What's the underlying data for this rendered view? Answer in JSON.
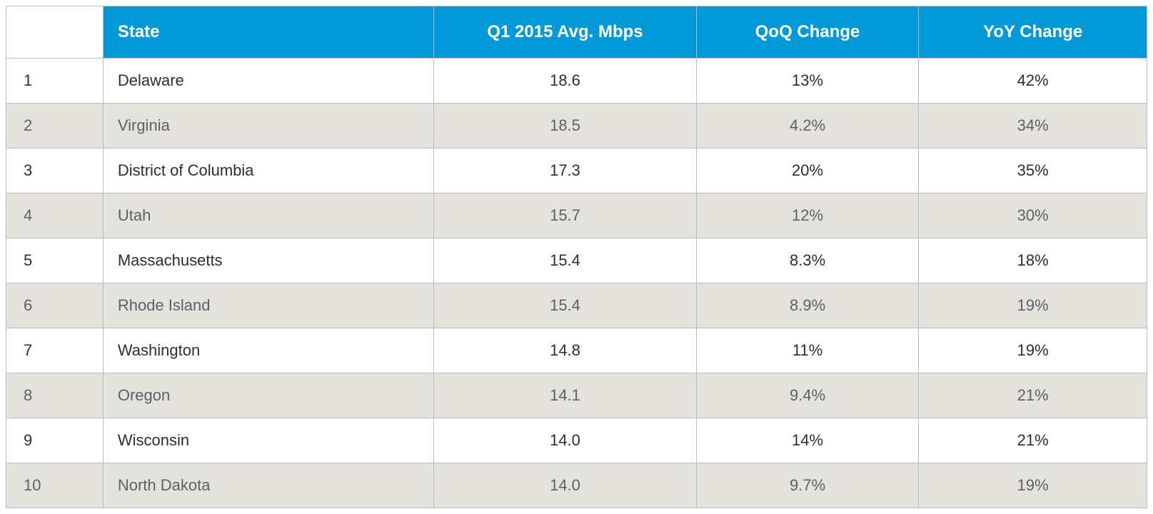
{
  "table": {
    "type": "table",
    "background_color": "#ffffff",
    "border_color": "#b8bdbf",
    "header": {
      "bg_color": "#0099d8",
      "text_color": "#ffffff",
      "font_size_pt": 18,
      "font_weight": 600
    },
    "row_odd": {
      "bg_color": "#ffffff",
      "text_color": "#2b2f31",
      "font_weight": 500
    },
    "row_even": {
      "bg_color": "#e4e2dd",
      "text_color": "#5b6266",
      "font_weight": 400
    },
    "columns": [
      {
        "key": "rank",
        "label": "",
        "align": "left",
        "width_pct": 8.5
      },
      {
        "key": "state",
        "label": "State",
        "align": "left",
        "width_pct": 29
      },
      {
        "key": "mbps",
        "label": "Q1 2015 Avg. Mbps",
        "align": "center",
        "width_pct": 23
      },
      {
        "key": "qoq",
        "label": "QoQ Change",
        "align": "center",
        "width_pct": 19.5
      },
      {
        "key": "yoy",
        "label": "YoY Change",
        "align": "center",
        "width_pct": 20
      }
    ],
    "rows": [
      {
        "rank": "1",
        "state": "Delaware",
        "mbps": "18.6",
        "qoq": "13%",
        "yoy": "42%"
      },
      {
        "rank": "2",
        "state": "Virginia",
        "mbps": "18.5",
        "qoq": "4.2%",
        "yoy": "34%"
      },
      {
        "rank": "3",
        "state": "District of Columbia",
        "mbps": "17.3",
        "qoq": "20%",
        "yoy": "35%"
      },
      {
        "rank": "4",
        "state": "Utah",
        "mbps": "15.7",
        "qoq": "12%",
        "yoy": "30%"
      },
      {
        "rank": "5",
        "state": "Massachusetts",
        "mbps": "15.4",
        "qoq": "8.3%",
        "yoy": "18%"
      },
      {
        "rank": "6",
        "state": "Rhode Island",
        "mbps": "15.4",
        "qoq": "8.9%",
        "yoy": "19%"
      },
      {
        "rank": "7",
        "state": "Washington",
        "mbps": "14.8",
        "qoq": "11%",
        "yoy": "19%"
      },
      {
        "rank": "8",
        "state": "Oregon",
        "mbps": "14.1",
        "qoq": "9.4%",
        "yoy": "21%"
      },
      {
        "rank": "9",
        "state": "Wisconsin",
        "mbps": "14.0",
        "qoq": "14%",
        "yoy": "21%"
      },
      {
        "rank": "10",
        "state": "North Dakota",
        "mbps": "14.0",
        "qoq": "9.7%",
        "yoy": "19%"
      }
    ]
  }
}
